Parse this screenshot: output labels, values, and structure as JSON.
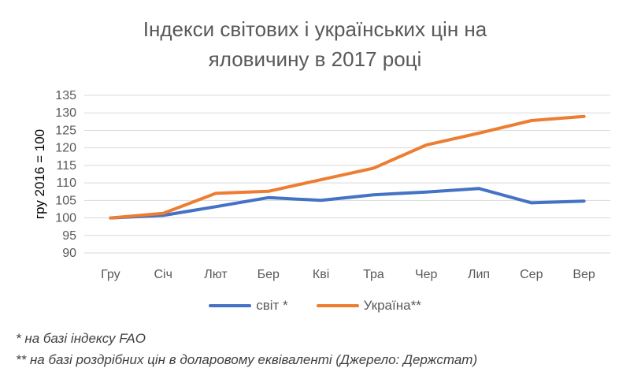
{
  "chart_data": {
    "type": "line",
    "title_lines": [
      "Індекси світових і українських цін на",
      "яловичину в 2017 році"
    ],
    "ylabel": "гру 2016 = 100",
    "xlabel": "",
    "categories": [
      "Гру",
      "Січ",
      "Лют",
      "Бер",
      "Кві",
      "Тра",
      "Чер",
      "Лип",
      "Сер",
      "Вер"
    ],
    "ylim": [
      90,
      135
    ],
    "yticks": [
      90,
      95,
      100,
      105,
      110,
      115,
      120,
      125,
      130,
      135
    ],
    "grid": true,
    "legend_position": "bottom",
    "series": [
      {
        "name": "світ *",
        "color": "#4472C4",
        "values": [
          100,
          100.7,
          103.2,
          105.8,
          105.0,
          106.6,
          107.4,
          108.4,
          104.3,
          104.8
        ]
      },
      {
        "name": "Україна**",
        "color": "#ED7D31",
        "values": [
          100,
          101.3,
          107.0,
          107.6,
          110.9,
          114.2,
          120.8,
          124.2,
          127.8,
          129.0
        ]
      }
    ]
  },
  "footnotes": [
    "* на базі індексу FAO",
    "** на базі роздрібних цін в доларовому еквіваленті (Джерело: Держстат)"
  ]
}
